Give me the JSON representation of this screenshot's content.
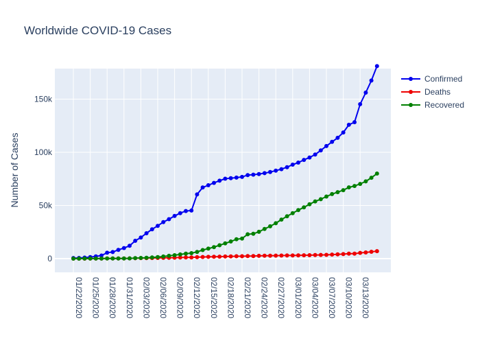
{
  "chart_data": {
    "type": "line",
    "title": "Worldwide COVID-19 Cases",
    "xlabel": "",
    "ylabel": "Number of Cases",
    "x": [
      "01/22/2020",
      "01/23/2020",
      "01/24/2020",
      "01/25/2020",
      "01/26/2020",
      "01/27/2020",
      "01/28/2020",
      "01/29/2020",
      "01/30/2020",
      "01/31/2020",
      "02/01/2020",
      "02/02/2020",
      "02/03/2020",
      "02/04/2020",
      "02/05/2020",
      "02/06/2020",
      "02/07/2020",
      "02/08/2020",
      "02/09/2020",
      "02/10/2020",
      "02/11/2020",
      "02/12/2020",
      "02/13/2020",
      "02/14/2020",
      "02/15/2020",
      "02/16/2020",
      "02/17/2020",
      "02/18/2020",
      "02/19/2020",
      "02/20/2020",
      "02/21/2020",
      "02/22/2020",
      "02/23/2020",
      "02/24/2020",
      "02/25/2020",
      "02/26/2020",
      "02/27/2020",
      "02/28/2020",
      "02/29/2020",
      "03/01/2020",
      "03/02/2020",
      "03/03/2020",
      "03/04/2020",
      "03/05/2020",
      "03/06/2020",
      "03/07/2020",
      "03/08/2020",
      "03/09/2020",
      "03/10/2020",
      "03/11/2020",
      "03/12/2020",
      "03/13/2020",
      "03/14/2020",
      "03/15/2020",
      "03/16/2020"
    ],
    "x_tick_labels": [
      "01/22/2020",
      "01/25/2020",
      "01/28/2020",
      "01/31/2020",
      "02/03/2020",
      "02/06/2020",
      "02/09/2020",
      "02/12/2020",
      "02/15/2020",
      "02/18/2020",
      "02/21/2020",
      "02/24/2020",
      "02/27/2020",
      "03/01/2020",
      "03/04/2020",
      "03/07/2020",
      "03/10/2020",
      "03/13/2020"
    ],
    "y_ticks": [
      0,
      50000,
      100000,
      150000
    ],
    "y_tick_labels": [
      "0",
      "50k",
      "100k",
      "150k"
    ],
    "ylim": [
      -12000,
      180000
    ],
    "grid": true,
    "legend_position": "top-right",
    "series": [
      {
        "name": "Confirmed",
        "color": "#0000ee",
        "values": [
          555,
          654,
          941,
          1434,
          2118,
          2927,
          5578,
          6166,
          8234,
          9927,
          12038,
          16787,
          19881,
          23892,
          27636,
          30818,
          34392,
          37121,
          40151,
          42763,
          44803,
          45222,
          60370,
          66887,
          69032,
          71226,
          73260,
          75138,
          75641,
          76199,
          76843,
          78599,
          78985,
          79570,
          80415,
          81397,
          82756,
          84124,
          86013,
          88371,
          90306,
          92840,
          95120,
          97886,
          101801,
          105847,
          109821,
          113590,
          118620,
          125875,
          128352,
          145205,
          156101,
          167454,
          181000
        ]
      },
      {
        "name": "Deaths",
        "color": "#ee0000",
        "values": [
          17,
          18,
          26,
          42,
          56,
          82,
          131,
          133,
          171,
          213,
          259,
          362,
          426,
          492,
          564,
          634,
          719,
          806,
          906,
          1013,
          1113,
          1118,
          1371,
          1523,
          1666,
          1770,
          1868,
          2007,
          2122,
          2247,
          2251,
          2458,
          2469,
          2629,
          2708,
          2770,
          2814,
          2872,
          2941,
          2996,
          3085,
          3160,
          3254,
          3348,
          3460,
          3558,
          3802,
          3988,
          4262,
          4615,
          4720,
          5404,
          5819,
          6440,
          7000
        ]
      },
      {
        "name": "Recovered",
        "color": "#008000",
        "values": [
          28,
          30,
          36,
          39,
          52,
          61,
          107,
          126,
          143,
          222,
          284,
          472,
          623,
          852,
          1124,
          1487,
          2011,
          2616,
          3244,
          3946,
          4683,
          5150,
          6295,
          8058,
          9395,
          10865,
          12583,
          14352,
          16121,
          18177,
          18890,
          22886,
          23394,
          25227,
          27905,
          30384,
          33277,
          36711,
          39782,
          42716,
          45602,
          48228,
          51170,
          53796,
          55865,
          58358,
          60694,
          62494,
          64404,
          67003,
          68324,
          70251,
          72624,
          76034,
          80000
        ]
      }
    ]
  }
}
